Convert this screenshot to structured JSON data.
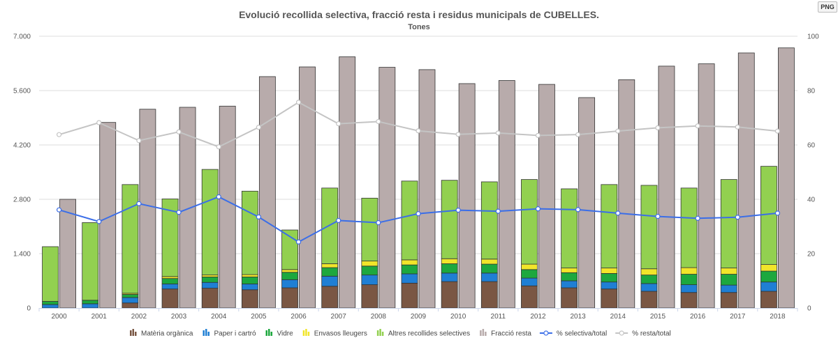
{
  "export_button": {
    "label": "PNG"
  },
  "colors": {
    "organic": "#7a5744",
    "paper": "#1f7fd4",
    "glass": "#1da83e",
    "packaging": "#f1e52a",
    "other_selective": "#92d050",
    "rest": "#b8abab",
    "pct_selective": "#3b6ee8",
    "pct_rest": "#c4c4c4"
  },
  "chart_data": {
    "type": "bar",
    "title": "Evolució recollida selectiva, fracció resta i residus municipals de CUBELLES.",
    "subtitle": "Tones",
    "categories": [
      "2000",
      "2001",
      "2002",
      "2003",
      "2004",
      "2005",
      "2006",
      "2007",
      "2008",
      "2009",
      "2010",
      "2011",
      "2012",
      "2013",
      "2014",
      "2015",
      "2016",
      "2017",
      "2018"
    ],
    "y_left": {
      "ylim": [
        0,
        7000
      ],
      "ticks": [
        "0",
        "1.400",
        "2.800",
        "4.200",
        "5.600",
        "7.000"
      ],
      "tick_values": [
        0,
        1400,
        2800,
        4200,
        5600,
        7000
      ]
    },
    "y_right": {
      "ylim": [
        0,
        100
      ],
      "ticks": [
        "0",
        "20",
        "40",
        "60",
        "80",
        "100"
      ],
      "tick_values": [
        0,
        20,
        40,
        60,
        80,
        100
      ]
    },
    "stacked_series": [
      {
        "name": "Matèria orgànica",
        "color_key": "organic",
        "values": [
          0,
          0,
          130,
          490,
          510,
          470,
          520,
          560,
          600,
          640,
          680,
          680,
          570,
          520,
          490,
          430,
          400,
          400,
          430
        ]
      },
      {
        "name": "Paper i cartró",
        "color_key": "paper",
        "values": [
          90,
          110,
          140,
          130,
          150,
          150,
          210,
          260,
          250,
          240,
          220,
          220,
          200,
          180,
          180,
          200,
          200,
          190,
          240
        ]
      },
      {
        "name": "Vidre",
        "color_key": "glass",
        "values": [
          80,
          90,
          80,
          140,
          140,
          180,
          190,
          220,
          230,
          230,
          240,
          230,
          220,
          210,
          220,
          220,
          270,
          280,
          280
        ]
      },
      {
        "name": "Envasos lleugers",
        "color_key": "packaging",
        "values": [
          0,
          0,
          30,
          50,
          50,
          60,
          70,
          100,
          130,
          130,
          130,
          130,
          140,
          120,
          140,
          160,
          170,
          160,
          170
        ]
      },
      {
        "name": "Altres recollides selectives",
        "color_key": "other_selective",
        "values": [
          1410,
          2000,
          2800,
          2000,
          2720,
          2150,
          1020,
          1950,
          1620,
          2030,
          2020,
          1990,
          2180,
          2040,
          2150,
          2150,
          2050,
          2280,
          2530
        ]
      }
    ],
    "rest_series": {
      "name": "Fracció resta",
      "color_key": "rest",
      "values": [
        2800,
        4780,
        5120,
        5170,
        5200,
        5960,
        6210,
        6470,
        6200,
        6140,
        5780,
        5860,
        5760,
        5420,
        5880,
        6230,
        6290,
        6570,
        6700
      ]
    },
    "line_series": [
      {
        "name": "% selectiva/total",
        "color_key": "pct_selective",
        "axis": "right",
        "values": [
          36.1,
          31.8,
          38.4,
          35.2,
          40.9,
          33.5,
          24.3,
          32.2,
          31.4,
          34.7,
          36.0,
          35.6,
          36.5,
          36.2,
          34.9,
          33.7,
          33.0,
          33.4,
          34.9
        ]
      },
      {
        "name": "% resta/total",
        "color_key": "pct_rest",
        "axis": "right",
        "values": [
          63.8,
          68.2,
          61.6,
          64.8,
          59.3,
          66.5,
          75.7,
          67.8,
          68.6,
          65.2,
          63.9,
          64.4,
          63.5,
          63.8,
          65.1,
          66.3,
          67.0,
          66.6,
          65.1
        ]
      }
    ],
    "legend": [
      {
        "label": "Matèria orgànica",
        "kind": "bar",
        "color_key": "organic"
      },
      {
        "label": "Paper i cartró",
        "kind": "bar",
        "color_key": "paper"
      },
      {
        "label": "Vidre",
        "kind": "bar",
        "color_key": "glass"
      },
      {
        "label": "Envasos lleugers",
        "kind": "bar",
        "color_key": "packaging"
      },
      {
        "label": "Altres recollides selectives",
        "kind": "bar",
        "color_key": "other_selective"
      },
      {
        "label": "Fracció resta",
        "kind": "bar",
        "color_key": "rest"
      },
      {
        "label": "% selectiva/total",
        "kind": "line",
        "color_key": "pct_selective"
      },
      {
        "label": "% resta/total",
        "kind": "line",
        "color_key": "pct_rest"
      }
    ],
    "legend_position": "bottom-center",
    "grid": true
  }
}
